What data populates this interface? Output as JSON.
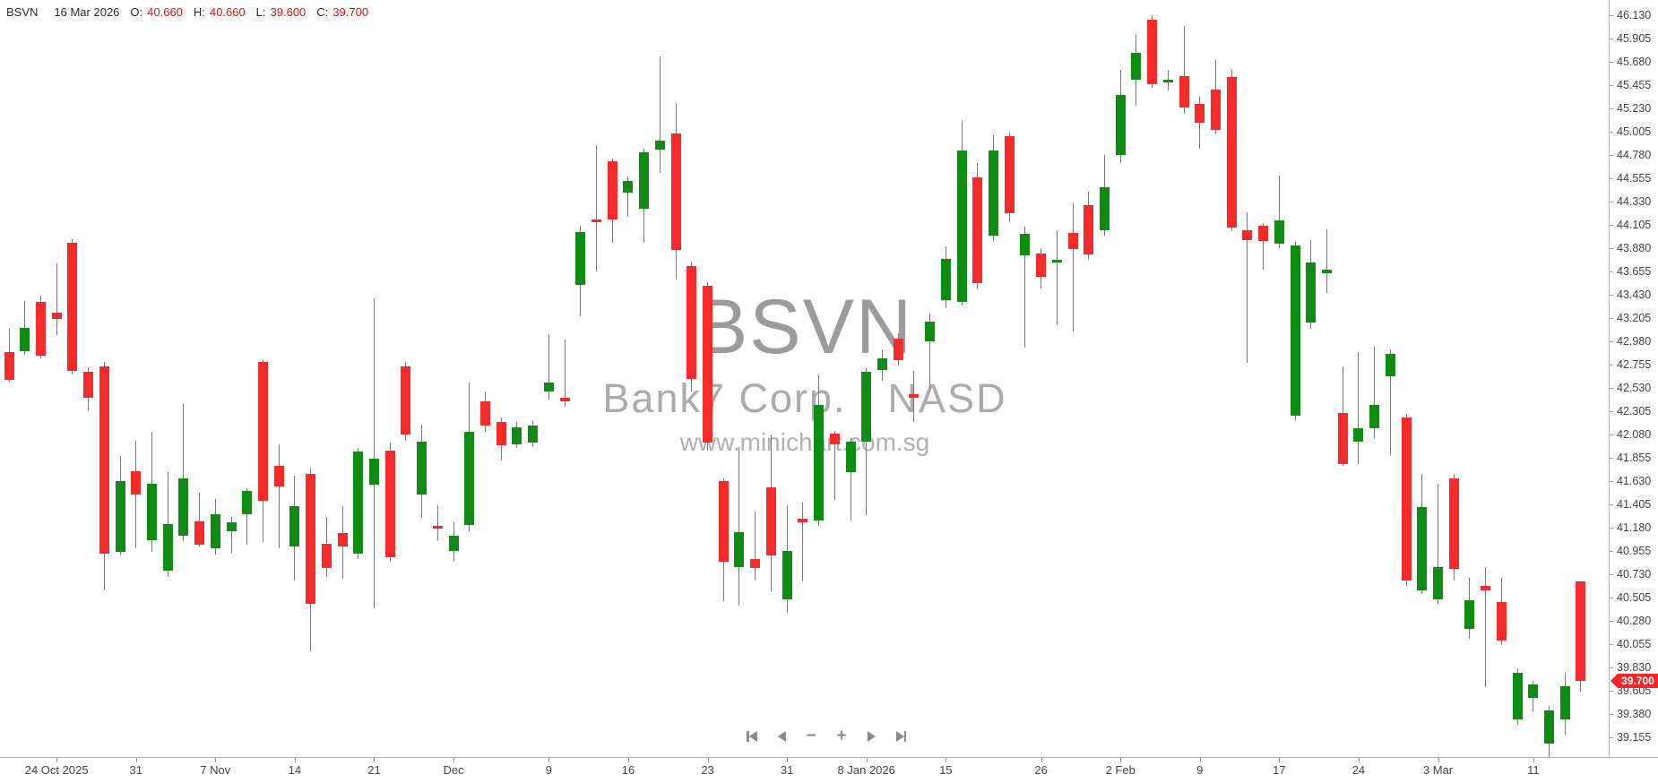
{
  "header": {
    "symbol": "BSVN",
    "date": "16 Mar 2026",
    "fields": [
      {
        "label": "O:",
        "value": "40.660"
      },
      {
        "label": "H:",
        "value": "40.660"
      },
      {
        "label": "L:",
        "value": "39.600"
      },
      {
        "label": "C:",
        "value": "39.700"
      }
    ]
  },
  "watermark": {
    "line1": "BSVN",
    "line2": "Bank7 Corp. - NASD",
    "line3": "www.minichart.com.sg"
  },
  "nav": {
    "buttons": [
      "skip-to-start",
      "step-back",
      "zoom-out",
      "zoom-in",
      "step-forward",
      "skip-to-end"
    ]
  },
  "chart_data": {
    "type": "candlestick",
    "title": "BSVN",
    "company": "Bank7 Corp. - NASD",
    "last_price": 39.7,
    "last_price_label": "39.700",
    "colors": {
      "up": "#108c14",
      "down": "#f52a2a",
      "wick": "#787878",
      "axis": "#b4b4b4",
      "label_text": "#444444",
      "header_value": "#e81212",
      "tag": "#f2262b",
      "watermark": "#a8a8a8"
    },
    "y_axis": {
      "side": "right",
      "max": 46.13,
      "min": 39.155,
      "step": 0.225,
      "labels": [
        "46.130",
        "45.905",
        "45.680",
        "45.455",
        "45.230",
        "45.005",
        "44.780",
        "44.555",
        "44.330",
        "44.105",
        "43.880",
        "43.655",
        "43.430",
        "43.205",
        "42.980",
        "42.755",
        "42.530",
        "42.305",
        "42.080",
        "41.855",
        "41.630",
        "41.405",
        "41.180",
        "40.955",
        "40.730",
        "40.505",
        "40.280",
        "40.055",
        "39.830",
        "39.605",
        "39.380",
        "39.155"
      ]
    },
    "x_axis": {
      "ticks": [
        {
          "index": 3,
          "label": "24 Oct 2025"
        },
        {
          "index": 8,
          "label": "31"
        },
        {
          "index": 13,
          "label": "7 Nov"
        },
        {
          "index": 18,
          "label": "14"
        },
        {
          "index": 23,
          "label": "21"
        },
        {
          "index": 28,
          "label": "Dec"
        },
        {
          "index": 34,
          "label": "9"
        },
        {
          "index": 39,
          "label": "16"
        },
        {
          "index": 44,
          "label": "23"
        },
        {
          "index": 49,
          "label": "31"
        },
        {
          "index": 54,
          "label": "8 Jan 2026"
        },
        {
          "index": 59,
          "label": "15"
        },
        {
          "index": 65,
          "label": "26"
        },
        {
          "index": 70,
          "label": "2 Feb"
        },
        {
          "index": 75,
          "label": "9"
        },
        {
          "index": 80,
          "label": "17"
        },
        {
          "index": 85,
          "label": "24"
        },
        {
          "index": 90,
          "label": "3 Mar"
        },
        {
          "index": 96,
          "label": "11"
        }
      ]
    },
    "candles": [
      {
        "d": "21 Oct",
        "o": 42.88,
        "h": 43.1,
        "l": 42.58,
        "c": 42.61
      },
      {
        "d": "22 Oct",
        "o": 42.89,
        "h": 43.37,
        "l": 42.85,
        "c": 43.11
      },
      {
        "d": "23 Oct",
        "o": 43.36,
        "h": 43.42,
        "l": 42.82,
        "c": 42.84
      },
      {
        "d": "24 Oct",
        "o": 43.26,
        "h": 43.73,
        "l": 43.04,
        "c": 43.2
      },
      {
        "d": "27 Oct",
        "o": 43.93,
        "h": 43.97,
        "l": 42.66,
        "c": 42.7
      },
      {
        "d": "28 Oct",
        "o": 42.69,
        "h": 42.73,
        "l": 42.31,
        "c": 42.44
      },
      {
        "d": "29 Oct",
        "o": 42.74,
        "h": 42.78,
        "l": 40.58,
        "c": 40.93
      },
      {
        "d": "30 Oct",
        "o": 40.95,
        "h": 41.87,
        "l": 40.91,
        "c": 41.63
      },
      {
        "d": "31 Oct",
        "o": 41.73,
        "h": 42.02,
        "l": 40.98,
        "c": 41.5
      },
      {
        "d": "3 Nov",
        "o": 41.06,
        "h": 42.11,
        "l": 40.95,
        "c": 41.61
      },
      {
        "d": "4 Nov",
        "o": 40.77,
        "h": 41.72,
        "l": 40.71,
        "c": 41.22
      },
      {
        "d": "5 Nov",
        "o": 41.1,
        "h": 42.38,
        "l": 41.05,
        "c": 41.66
      },
      {
        "d": "6 Nov",
        "o": 41.24,
        "h": 41.52,
        "l": 41.0,
        "c": 41.02
      },
      {
        "d": "7 Nov",
        "o": 40.98,
        "h": 41.46,
        "l": 40.92,
        "c": 41.31
      },
      {
        "d": "10 Nov",
        "o": 41.15,
        "h": 41.29,
        "l": 40.94,
        "c": 41.23
      },
      {
        "d": "11 Nov",
        "o": 41.31,
        "h": 41.56,
        "l": 41.02,
        "c": 41.54
      },
      {
        "d": "12 Nov",
        "o": 42.78,
        "h": 42.8,
        "l": 41.04,
        "c": 41.44
      },
      {
        "d": "13 Nov",
        "o": 41.78,
        "h": 41.99,
        "l": 40.98,
        "c": 41.58
      },
      {
        "d": "14 Nov",
        "o": 41.0,
        "h": 41.68,
        "l": 40.67,
        "c": 41.39
      },
      {
        "d": "17 Nov",
        "o": 41.7,
        "h": 41.75,
        "l": 39.99,
        "c": 40.45
      },
      {
        "d": "18 Nov",
        "o": 41.03,
        "h": 41.29,
        "l": 40.71,
        "c": 40.79
      },
      {
        "d": "19 Nov",
        "o": 41.13,
        "h": 41.39,
        "l": 40.69,
        "c": 41.0
      },
      {
        "d": "20 Nov",
        "o": 40.93,
        "h": 41.95,
        "l": 40.88,
        "c": 41.92
      },
      {
        "d": "21 Nov",
        "o": 41.6,
        "h": 43.4,
        "l": 40.4,
        "c": 41.85
      },
      {
        "d": "24 Nov",
        "o": 41.93,
        "h": 42.0,
        "l": 40.85,
        "c": 40.9
      },
      {
        "d": "25 Nov",
        "o": 42.74,
        "h": 42.78,
        "l": 42.02,
        "c": 42.08
      },
      {
        "d": "26 Nov",
        "o": 41.5,
        "h": 42.18,
        "l": 41.28,
        "c": 42.01
      },
      {
        "d": "28 Nov",
        "o": 41.2,
        "h": 41.4,
        "l": 41.05,
        "c": 41.17
      },
      {
        "d": "1 Dec",
        "o": 40.96,
        "h": 41.23,
        "l": 40.85,
        "c": 41.1
      },
      {
        "d": "2 Dec",
        "o": 41.21,
        "h": 42.58,
        "l": 41.15,
        "c": 42.11
      },
      {
        "d": "3 Dec",
        "o": 42.4,
        "h": 42.5,
        "l": 42.1,
        "c": 42.17
      },
      {
        "d": "4 Dec",
        "o": 42.2,
        "h": 42.25,
        "l": 41.83,
        "c": 41.98
      },
      {
        "d": "5 Dec",
        "o": 41.99,
        "h": 42.2,
        "l": 41.95,
        "c": 42.15
      },
      {
        "d": "8 Dec",
        "o": 42.0,
        "h": 42.22,
        "l": 41.96,
        "c": 42.17
      },
      {
        "d": "9 Dec",
        "o": 42.5,
        "h": 43.05,
        "l": 42.42,
        "c": 42.58
      },
      {
        "d": "10 Dec",
        "o": 42.44,
        "h": 43.0,
        "l": 42.35,
        "c": 42.4
      },
      {
        "d": "11 Dec",
        "o": 43.53,
        "h": 44.1,
        "l": 43.22,
        "c": 44.04
      },
      {
        "d": "12 Dec",
        "o": 44.16,
        "h": 44.88,
        "l": 43.66,
        "c": 44.13
      },
      {
        "d": "15 Dec",
        "o": 44.72,
        "h": 44.75,
        "l": 43.93,
        "c": 44.16
      },
      {
        "d": "16 Dec",
        "o": 44.42,
        "h": 44.57,
        "l": 44.18,
        "c": 44.53
      },
      {
        "d": "17 Dec",
        "o": 44.26,
        "h": 44.84,
        "l": 43.93,
        "c": 44.81
      },
      {
        "d": "18 Dec",
        "o": 44.83,
        "h": 45.73,
        "l": 44.61,
        "c": 44.92
      },
      {
        "d": "19 Dec",
        "o": 44.99,
        "h": 45.28,
        "l": 43.58,
        "c": 43.86
      },
      {
        "d": "22 Dec",
        "o": 43.71,
        "h": 43.75,
        "l": 42.5,
        "c": 42.62
      },
      {
        "d": "23 Dec",
        "o": 43.52,
        "h": 43.55,
        "l": 41.93,
        "c": 42.0
      },
      {
        "d": "24 Dec",
        "o": 41.63,
        "h": 41.66,
        "l": 40.47,
        "c": 40.85
      },
      {
        "d": "26 Dec",
        "o": 40.8,
        "h": 41.96,
        "l": 40.43,
        "c": 41.14
      },
      {
        "d": "29 Dec",
        "o": 40.88,
        "h": 41.34,
        "l": 40.67,
        "c": 40.79
      },
      {
        "d": "30 Dec",
        "o": 41.57,
        "h": 42.08,
        "l": 40.57,
        "c": 40.91
      },
      {
        "d": "31 Dec",
        "o": 40.49,
        "h": 41.4,
        "l": 40.36,
        "c": 40.96
      },
      {
        "d": "2 Jan",
        "o": 41.27,
        "h": 41.42,
        "l": 40.66,
        "c": 41.23
      },
      {
        "d": "5 Jan",
        "o": 41.25,
        "h": 42.66,
        "l": 41.2,
        "c": 42.37
      },
      {
        "d": "6 Jan",
        "o": 42.09,
        "h": 42.12,
        "l": 41.45,
        "c": 41.99
      },
      {
        "d": "7 Jan",
        "o": 41.72,
        "h": 42.05,
        "l": 41.25,
        "c": 42.01
      },
      {
        "d": "8 Jan",
        "o": 42.01,
        "h": 42.72,
        "l": 41.3,
        "c": 42.69
      },
      {
        "d": "9 Jan",
        "o": 42.7,
        "h": 42.9,
        "l": 42.6,
        "c": 42.82
      },
      {
        "d": "12 Jan",
        "o": 43.01,
        "h": 43.06,
        "l": 42.75,
        "c": 42.8
      },
      {
        "d": "13 Jan",
        "o": 42.47,
        "h": 42.7,
        "l": 42.2,
        "c": 42.44
      },
      {
        "d": "14 Jan",
        "o": 42.98,
        "h": 43.25,
        "l": 42.53,
        "c": 43.17
      },
      {
        "d": "15 Jan",
        "o": 43.38,
        "h": 43.9,
        "l": 43.3,
        "c": 43.78
      },
      {
        "d": "16 Jan",
        "o": 43.36,
        "h": 45.11,
        "l": 43.33,
        "c": 44.82
      },
      {
        "d": "20 Jan",
        "o": 44.56,
        "h": 44.7,
        "l": 43.48,
        "c": 43.54
      },
      {
        "d": "21 Jan",
        "o": 44.0,
        "h": 44.97,
        "l": 43.95,
        "c": 44.82
      },
      {
        "d": "22 Jan",
        "o": 44.96,
        "h": 45.0,
        "l": 44.13,
        "c": 44.22
      },
      {
        "d": "23 Jan",
        "o": 43.81,
        "h": 44.09,
        "l": 42.92,
        "c": 44.02
      },
      {
        "d": "26 Jan",
        "o": 43.83,
        "h": 43.88,
        "l": 43.49,
        "c": 43.6
      },
      {
        "d": "27 Jan",
        "o": 43.74,
        "h": 44.05,
        "l": 43.14,
        "c": 43.77
      },
      {
        "d": "28 Jan",
        "o": 44.03,
        "h": 44.31,
        "l": 43.08,
        "c": 43.87
      },
      {
        "d": "29 Jan",
        "o": 44.3,
        "h": 44.43,
        "l": 43.78,
        "c": 43.82
      },
      {
        "d": "30 Jan",
        "o": 44.05,
        "h": 44.78,
        "l": 44.0,
        "c": 44.47
      },
      {
        "d": "2 Feb",
        "o": 44.78,
        "h": 45.6,
        "l": 44.7,
        "c": 45.36
      },
      {
        "d": "3 Feb",
        "o": 45.51,
        "h": 45.94,
        "l": 45.26,
        "c": 45.77
      },
      {
        "d": "4 Feb",
        "o": 46.09,
        "h": 46.13,
        "l": 45.43,
        "c": 45.46
      },
      {
        "d": "5 Feb",
        "o": 45.48,
        "h": 45.6,
        "l": 45.4,
        "c": 45.51
      },
      {
        "d": "6 Feb",
        "o": 45.54,
        "h": 46.03,
        "l": 45.18,
        "c": 45.24
      },
      {
        "d": "9 Feb",
        "o": 45.27,
        "h": 45.34,
        "l": 44.84,
        "c": 45.09
      },
      {
        "d": "10 Feb",
        "o": 45.41,
        "h": 45.7,
        "l": 44.98,
        "c": 45.02
      },
      {
        "d": "11 Feb",
        "o": 45.53,
        "h": 45.61,
        "l": 44.05,
        "c": 44.08
      },
      {
        "d": "12 Feb",
        "o": 44.05,
        "h": 44.23,
        "l": 42.77,
        "c": 43.96
      },
      {
        "d": "13 Feb",
        "o": 44.1,
        "h": 44.12,
        "l": 43.67,
        "c": 43.95
      },
      {
        "d": "17 Feb",
        "o": 43.92,
        "h": 44.58,
        "l": 43.88,
        "c": 44.15
      },
      {
        "d": "18 Feb",
        "o": 42.26,
        "h": 43.95,
        "l": 42.22,
        "c": 43.91
      },
      {
        "d": "19 Feb",
        "o": 43.16,
        "h": 43.96,
        "l": 43.1,
        "c": 43.74
      },
      {
        "d": "20 Feb",
        "o": 43.64,
        "h": 44.06,
        "l": 43.45,
        "c": 43.67
      },
      {
        "d": "23 Feb",
        "o": 42.29,
        "h": 42.74,
        "l": 41.78,
        "c": 41.8
      },
      {
        "d": "24 Feb",
        "o": 42.01,
        "h": 42.88,
        "l": 41.8,
        "c": 42.14
      },
      {
        "d": "25 Feb",
        "o": 42.14,
        "h": 42.93,
        "l": 42.05,
        "c": 42.37
      },
      {
        "d": "26 Feb",
        "o": 42.64,
        "h": 42.9,
        "l": 41.88,
        "c": 42.86
      },
      {
        "d": "27 Feb",
        "o": 42.25,
        "h": 42.28,
        "l": 40.62,
        "c": 40.67
      },
      {
        "d": "2 Mar",
        "o": 40.58,
        "h": 41.7,
        "l": 40.54,
        "c": 41.38
      },
      {
        "d": "3 Mar",
        "o": 40.49,
        "h": 41.61,
        "l": 40.44,
        "c": 40.8
      },
      {
        "d": "4 Mar",
        "o": 41.66,
        "h": 41.7,
        "l": 40.67,
        "c": 40.78
      },
      {
        "d": "5 Mar",
        "o": 40.2,
        "h": 40.7,
        "l": 40.11,
        "c": 40.48
      },
      {
        "d": "6 Mar",
        "o": 40.62,
        "h": 40.8,
        "l": 39.64,
        "c": 40.58
      },
      {
        "d": "9 Mar",
        "o": 40.46,
        "h": 40.7,
        "l": 40.05,
        "c": 40.09
      },
      {
        "d": "10 Mar",
        "o": 39.33,
        "h": 39.82,
        "l": 39.28,
        "c": 39.78
      },
      {
        "d": "11 Mar",
        "o": 39.54,
        "h": 39.7,
        "l": 39.41,
        "c": 39.67
      },
      {
        "d": "12 Mar",
        "o": 39.1,
        "h": 39.46,
        "l": 38.97,
        "c": 39.42
      },
      {
        "d": "13 Mar",
        "o": 39.33,
        "h": 39.78,
        "l": 39.18,
        "c": 39.65
      },
      {
        "d": "16 Mar",
        "o": 40.66,
        "h": 40.66,
        "l": 39.6,
        "c": 39.7
      }
    ]
  }
}
